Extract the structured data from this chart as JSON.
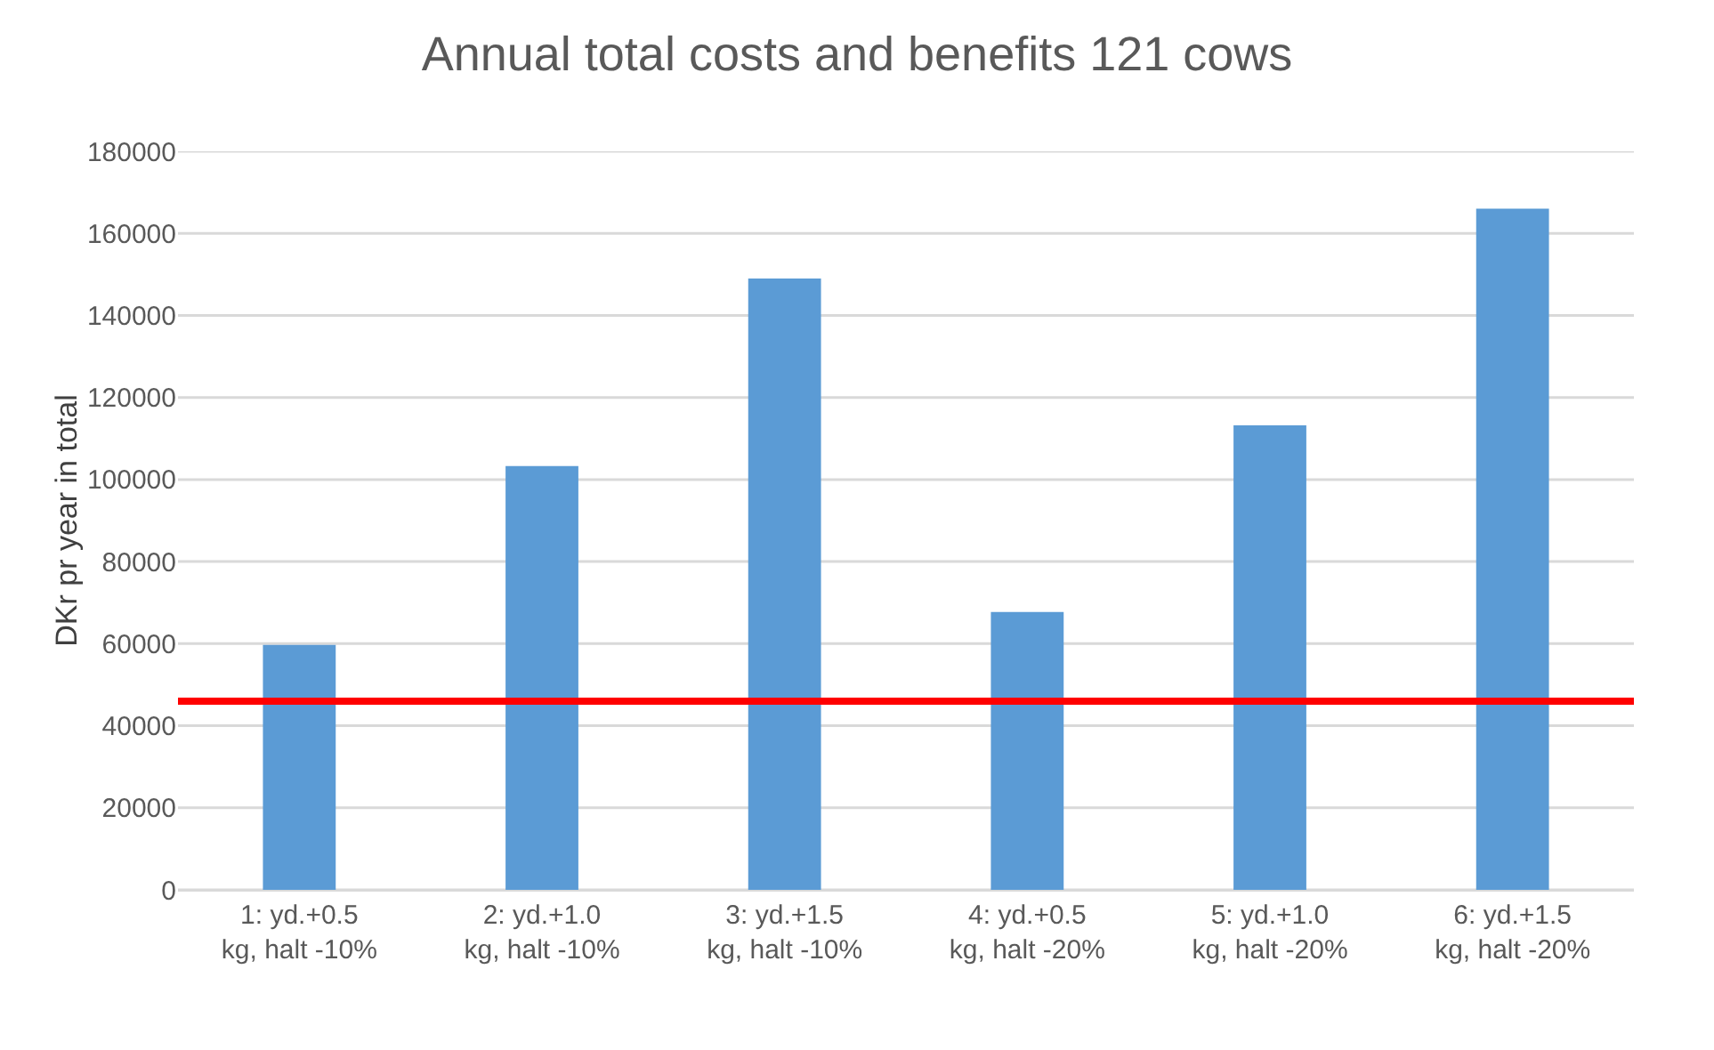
{
  "chart_data": {
    "type": "bar",
    "title": "Annual total costs and benefits 121 cows",
    "ylabel": "DKr pr year in total",
    "categories": [
      "1: yd.+0.5 kg, halt -10%",
      "2: yd.+1.0 kg, halt -10%",
      "3: yd.+1.5 kg, halt -10%",
      "4: yd.+0.5 kg, halt -20%",
      "5: yd.+1.0 kg, halt -20%",
      "6: yd.+1.5 kg, halt -20%"
    ],
    "values": [
      59700,
      103300,
      149000,
      67700,
      113200,
      166000
    ],
    "color": "#5b9bd5",
    "ylim": [
      0,
      180000
    ],
    "yticks": [
      0,
      20000,
      40000,
      60000,
      80000,
      100000,
      120000,
      140000,
      160000,
      180000
    ],
    "grid": "y",
    "ref_lines": [
      {
        "axis": "y",
        "value": 46000,
        "color": "#ff0000"
      }
    ]
  }
}
